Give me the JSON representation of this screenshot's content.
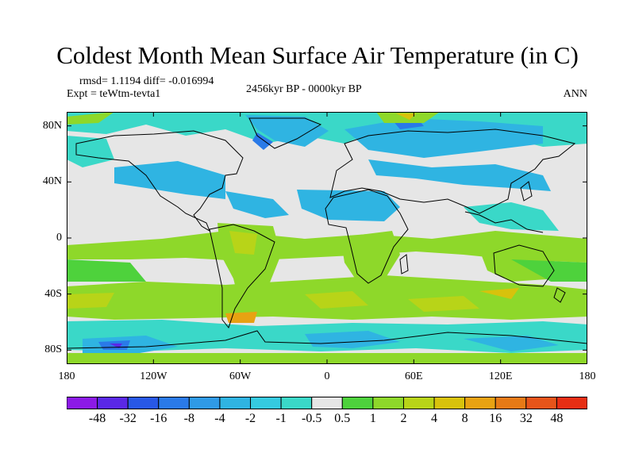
{
  "header": {
    "title": "Coldest Month Mean Surface Air Temperature (in C)",
    "stats": "rmsd= 1.1194 diff= -0.016994",
    "experiment": "Expt = teWtm-tevta1",
    "period": "2456kyr BP - 0000kyr BP",
    "season": "ANN"
  },
  "map": {
    "projection": "cylindrical equidistant",
    "lon_range": [
      -180,
      180
    ],
    "lat_range": [
      -90,
      90
    ],
    "x_ticks": [
      {
        "lon": -180,
        "label": "180"
      },
      {
        "lon": -120,
        "label": "120W"
      },
      {
        "lon": -60,
        "label": "60W"
      },
      {
        "lon": 0,
        "label": "0"
      },
      {
        "lon": 60,
        "label": "60E"
      },
      {
        "lon": 120,
        "label": "120E"
      },
      {
        "lon": 180,
        "label": "180"
      }
    ],
    "y_ticks": [
      {
        "lat": 80,
        "label": "80N"
      },
      {
        "lat": 40,
        "label": "40N"
      },
      {
        "lat": 0,
        "label": "0"
      },
      {
        "lat": -40,
        "label": "40S"
      },
      {
        "lat": -80,
        "label": "80S"
      }
    ],
    "background_color": "#e6e6e6",
    "coastline_color": "#000000"
  },
  "colorbar": {
    "colors": [
      "#8c1ae6",
      "#5a28e6",
      "#2858e6",
      "#2a7ae8",
      "#2f9ae6",
      "#2fb4e2",
      "#35cae0",
      "#3ad8c8",
      "#e6e6e6",
      "#4ed23c",
      "#8ed82a",
      "#b8d418",
      "#d8c20c",
      "#e8a212",
      "#e67a16",
      "#e6541a",
      "#e62e14"
    ],
    "labels": [
      "-48",
      "-32",
      "-16",
      "-8",
      "-4",
      "-2",
      "-1",
      "-0.5",
      "0.5",
      "1",
      "2",
      "4",
      "8",
      "16",
      "32",
      "48"
    ]
  }
}
